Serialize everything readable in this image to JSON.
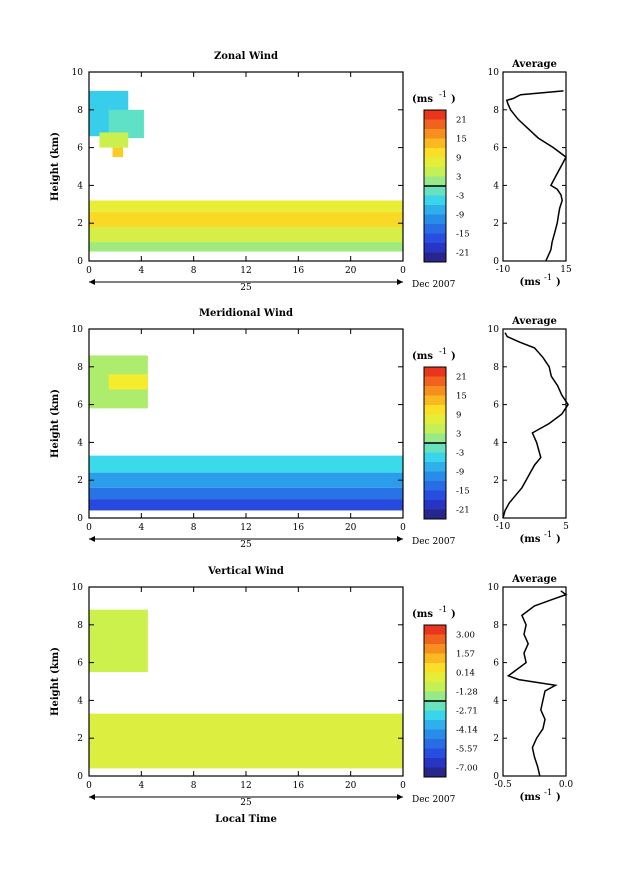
{
  "x_axis": {
    "ticks": [
      "0",
      "4",
      "8",
      "12",
      "16",
      "20",
      "0"
    ],
    "day_label": "25",
    "date_label": "Dec 2007",
    "xlabel": "Local Time"
  },
  "colorbar_unit": "(ms",
  "colorbar_unit_exp": "-1",
  "avg_unit": "(ms",
  "avg_unit_exp": "-1",
  "height_label": "Height (km)",
  "chart_data": [
    {
      "type": "heatmap",
      "title": "Zonal Wind",
      "ylabel": "Height (km)",
      "xlim": [
        0,
        24
      ],
      "ylim": [
        0,
        10
      ],
      "yticks": [
        "0",
        "2",
        "4",
        "6",
        "8",
        "10"
      ],
      "colorbar": {
        "ticks": [
          "21",
          "15",
          "9",
          "3",
          "-3",
          "-9",
          "-15",
          "-21"
        ],
        "range": [
          -24,
          24
        ]
      },
      "regions": [
        {
          "x": [
            0,
            3.0
          ],
          "y": [
            6.6,
            9.0
          ],
          "value": -5
        },
        {
          "x": [
            1.5,
            4.2
          ],
          "y": [
            6.5,
            8.0
          ],
          "value": -2
        },
        {
          "x": [
            0.8,
            3.0
          ],
          "y": [
            6.0,
            6.8
          ],
          "value": 5
        },
        {
          "x": [
            1.8,
            2.6
          ],
          "y": [
            5.5,
            6.0
          ],
          "value": 12
        },
        {
          "x": [
            0,
            24
          ],
          "y": [
            1.8,
            2.6
          ],
          "value": 11
        },
        {
          "x": [
            0,
            24
          ],
          "y": [
            2.6,
            3.2
          ],
          "value": 8
        },
        {
          "x": [
            0,
            24
          ],
          "y": [
            1.0,
            1.8
          ],
          "value": 6
        },
        {
          "x": [
            0,
            24
          ],
          "y": [
            0.5,
            1.0
          ],
          "value": 2
        }
      ],
      "average": {
        "xlim": [
          -10,
          15
        ],
        "xticks": [
          "-10",
          "15"
        ],
        "height": [
          0,
          0.3,
          0.6,
          1.0,
          1.5,
          2.0,
          2.4,
          2.8,
          3.2,
          3.5,
          3.8,
          4.0,
          4.5,
          5.0,
          5.5,
          6.0,
          6.5,
          7.0,
          7.5,
          8.0,
          8.3,
          8.5,
          8.6,
          8.8,
          9.0
        ],
        "value": [
          7.0,
          8.0,
          9.0,
          9.5,
          10.5,
          11.5,
          12.0,
          12.5,
          13.5,
          13.0,
          11.5,
          9.0,
          11.0,
          13.0,
          15.0,
          10.0,
          4.0,
          0.0,
          -4.0,
          -7.0,
          -8.0,
          -8.5,
          -6.0,
          -3.0,
          14.0
        ]
      }
    },
    {
      "type": "heatmap",
      "title": "Meridional Wind",
      "ylabel": "Height (km)",
      "xlim": [
        0,
        24
      ],
      "ylim": [
        0,
        10
      ],
      "yticks": [
        "0",
        "2",
        "4",
        "6",
        "8",
        "10"
      ],
      "colorbar": {
        "ticks": [
          "21",
          "15",
          "9",
          "3",
          "-3",
          "-9",
          "-15",
          "-21"
        ],
        "range": [
          -24,
          24
        ]
      },
      "regions": [
        {
          "x": [
            0,
            4.5
          ],
          "y": [
            5.8,
            8.6
          ],
          "value": 3
        },
        {
          "x": [
            1.5,
            4.5
          ],
          "y": [
            6.8,
            7.6
          ],
          "value": 9
        },
        {
          "x": [
            0,
            24
          ],
          "y": [
            2.4,
            3.3
          ],
          "value": -4
        },
        {
          "x": [
            0,
            24
          ],
          "y": [
            1.6,
            2.4
          ],
          "value": -9
        },
        {
          "x": [
            0,
            24
          ],
          "y": [
            1.0,
            1.6
          ],
          "value": -13
        },
        {
          "x": [
            0,
            24
          ],
          "y": [
            0.4,
            1.0
          ],
          "value": -17
        }
      ],
      "average": {
        "xlim": [
          -10,
          5
        ],
        "xticks": [
          "-10",
          "5"
        ],
        "height": [
          0,
          0.4,
          0.8,
          1.2,
          1.6,
          2.0,
          2.4,
          2.8,
          3.2,
          3.6,
          4.0,
          4.5,
          5.0,
          5.5,
          6.0,
          6.5,
          7.0,
          7.5,
          8.0,
          8.5,
          9.0,
          9.3,
          9.6,
          9.8
        ],
        "value": [
          -10.0,
          -9.5,
          -8.5,
          -7.0,
          -5.5,
          -4.5,
          -3.5,
          -2.5,
          -1.0,
          -1.5,
          -2.0,
          -3.0,
          1.0,
          4.0,
          5.5,
          4.0,
          3.0,
          1.5,
          1.0,
          -0.5,
          -2.5,
          -6.0,
          -9.0,
          -9.5
        ]
      }
    },
    {
      "type": "heatmap",
      "title": "Vertical Wind",
      "ylabel": "Height (km)",
      "xlim": [
        0,
        24
      ],
      "ylim": [
        0,
        10
      ],
      "yticks": [
        "0",
        "2",
        "4",
        "6",
        "8",
        "10"
      ],
      "colorbar": {
        "ticks": [
          "3.00",
          "1.57",
          "0.14",
          "-1.28",
          "-2.71",
          "-4.14",
          "-5.57",
          "-7.00"
        ],
        "range": [
          -8.43,
          4.43
        ]
      },
      "regions": [
        {
          "x": [
            0,
            4.5
          ],
          "y": [
            5.5,
            8.8
          ],
          "value": -0.6
        },
        {
          "x": [
            0,
            24
          ],
          "y": [
            0.4,
            3.3
          ],
          "value": -0.2
        }
      ],
      "average": {
        "xlim": [
          -0.6,
          0.0
        ],
        "xticks": [
          "-0.5",
          "0.0"
        ],
        "height": [
          0,
          0.5,
          1.0,
          1.5,
          2.0,
          2.5,
          3.0,
          3.5,
          4.0,
          4.5,
          4.8,
          5.1,
          5.3,
          5.5,
          6.0,
          6.5,
          7.0,
          7.5,
          8.0,
          8.5,
          9.0,
          9.3,
          9.6,
          9.8
        ],
        "value": [
          -0.25,
          -0.27,
          -0.3,
          -0.32,
          -0.28,
          -0.22,
          -0.2,
          -0.24,
          -0.22,
          -0.2,
          -0.1,
          -0.45,
          -0.55,
          -0.5,
          -0.38,
          -0.4,
          -0.36,
          -0.4,
          -0.38,
          -0.42,
          -0.3,
          -0.15,
          0.0,
          -0.05
        ]
      }
    }
  ]
}
